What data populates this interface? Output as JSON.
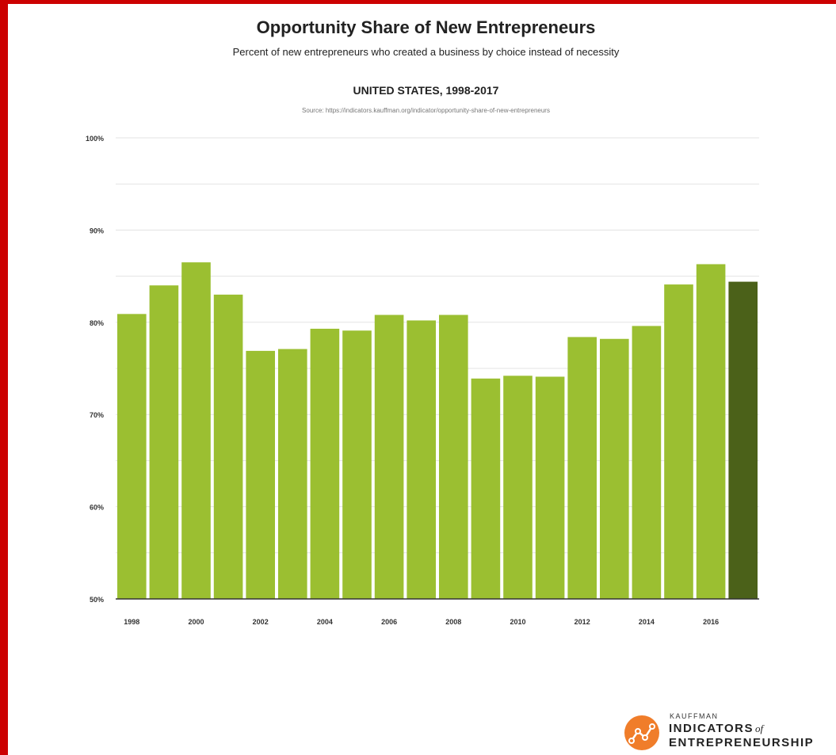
{
  "header": {
    "title": "Opportunity Share of New Entrepreneurs",
    "subtitle": "Percent of new entrepreneurs who created a business by choice instead of necessity",
    "region": "UNITED STATES, 1998-2017",
    "source": "Source: https://indicators.kauffman.org/indicator/opportunity-share-of-new-entrepreneurs"
  },
  "logo": {
    "small": "KAUFFMAN",
    "line1": "INDICATORS",
    "of": "of",
    "line2": "ENTREPRENEURSHIP"
  },
  "colors": {
    "bar": "#9bbf31",
    "highlight_bar": "#4b6119",
    "frame": "#cc0000",
    "logo_accent": "#f07d2a"
  },
  "chart_data": {
    "type": "bar",
    "categories": [
      "1998",
      "1999",
      "2000",
      "2001",
      "2002",
      "2003",
      "2004",
      "2005",
      "2006",
      "2007",
      "2008",
      "2009",
      "2010",
      "2011",
      "2012",
      "2013",
      "2014",
      "2015",
      "2016",
      "2017"
    ],
    "values": [
      80.9,
      84.0,
      86.5,
      83.0,
      76.9,
      77.1,
      79.3,
      79.1,
      80.8,
      80.2,
      80.8,
      73.9,
      74.2,
      74.1,
      78.4,
      78.2,
      79.6,
      84.1,
      86.3,
      84.4
    ],
    "highlight_index": 19,
    "ylim": [
      50,
      100
    ],
    "yticks": [
      50,
      60,
      70,
      80,
      90,
      100
    ],
    "ytick_labels": [
      "50%",
      "60%",
      "70%",
      "80%",
      "90%",
      "100%"
    ],
    "xtick_labels": [
      "1998",
      "2000",
      "2002",
      "2004",
      "2006",
      "2008",
      "2010",
      "2012",
      "2014",
      "2016"
    ],
    "grid": true
  }
}
